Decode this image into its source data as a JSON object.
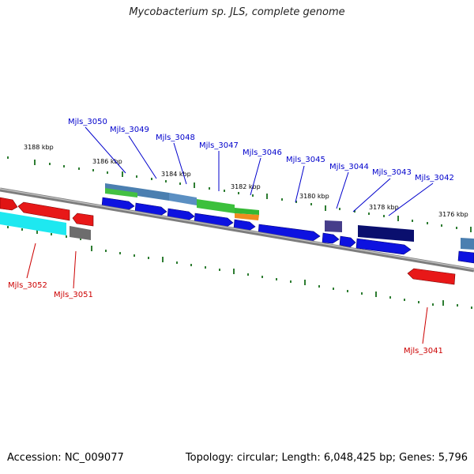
{
  "title": "Mycobacterium sp. JLS, complete genome",
  "footer": {
    "accession": "Accession: NC_009077",
    "topology": "Topology: circular; Length: 6,048,425 bp; Genes: 5,796"
  },
  "colors": {
    "forward_label": "#0000cc",
    "reverse_label": "#cc0000",
    "backbone": "#8a8a8a",
    "tick": "#2e7d32"
  },
  "scale_labels": [
    "3188 kbp",
    "3186 kbp",
    "3184 kbp",
    "3182 kbp",
    "3180 kbp",
    "3178 kbp",
    "3176 kbp"
  ],
  "forward_gene_labels": [
    "Mjls_3050",
    "Mjls_3049",
    "Mjls_3048",
    "Mjls_3047",
    "Mjls_3046",
    "Mjls_3045",
    "Mjls_3044",
    "Mjls_3043",
    "Mjls_3042"
  ],
  "reverse_gene_labels": [
    "Mjls_3052",
    "Mjls_3051",
    "Mjls_3041"
  ]
}
